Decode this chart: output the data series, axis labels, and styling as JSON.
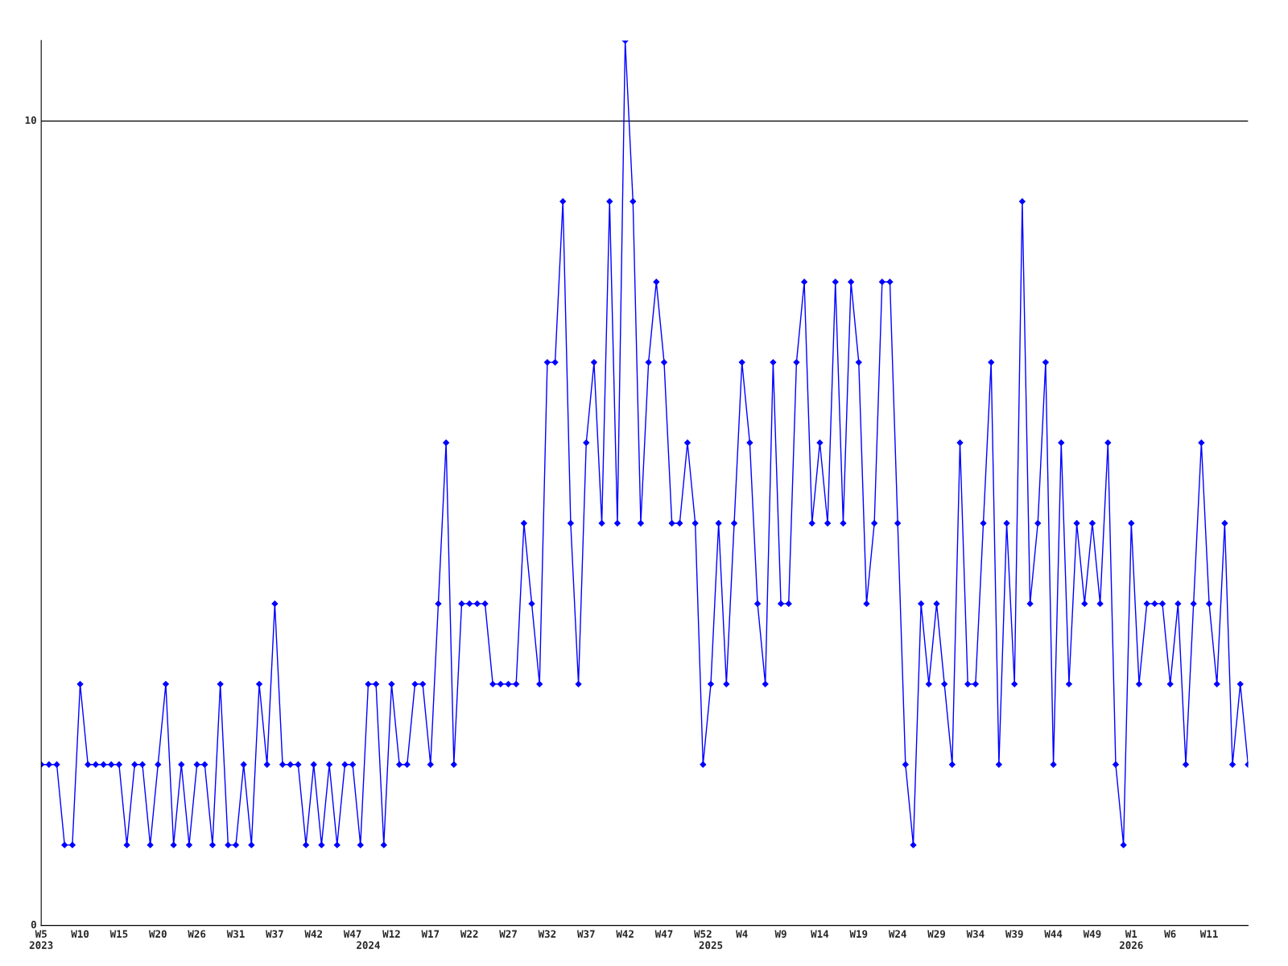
{
  "chart_data": {
    "type": "line",
    "categories": [
      "W5\n2023",
      null,
      null,
      null,
      null,
      "W10",
      null,
      null,
      null,
      null,
      "W15",
      null,
      null,
      null,
      null,
      "W20",
      null,
      null,
      null,
      null,
      "W26",
      null,
      null,
      null,
      null,
      "W31",
      null,
      null,
      null,
      null,
      "W37",
      null,
      null,
      null,
      null,
      "W42",
      null,
      null,
      null,
      null,
      "W47",
      null,
      "\n2024",
      null,
      null,
      "W12",
      null,
      null,
      null,
      null,
      "W17",
      null,
      null,
      null,
      null,
      "W22",
      null,
      null,
      null,
      null,
      "W27",
      null,
      null,
      null,
      null,
      "W32",
      null,
      null,
      null,
      null,
      "W37",
      null,
      null,
      null,
      null,
      "W42",
      null,
      null,
      null,
      null,
      "W47",
      null,
      null,
      null,
      null,
      "W52",
      "\n2025",
      null,
      null,
      null,
      "W4",
      null,
      null,
      null,
      null,
      "W9",
      null,
      null,
      null,
      null,
      "W14",
      null,
      null,
      null,
      null,
      "W19",
      null,
      null,
      null,
      null,
      "W24",
      null,
      null,
      null,
      null,
      "W29",
      null,
      null,
      null,
      null,
      "W34",
      null,
      null,
      null,
      null,
      "W39",
      null,
      null,
      null,
      null,
      "W44",
      null,
      null,
      null,
      null,
      "W49",
      null,
      null,
      null,
      null,
      "W1\n2026",
      null,
      null,
      null,
      null,
      "W6",
      null,
      null,
      null,
      null,
      "W11",
      null,
      null,
      null,
      null,
      null
    ],
    "series": [
      {
        "color": "#0000ff",
        "values": [
          2,
          2,
          2,
          1,
          1,
          3,
          2,
          2,
          2,
          2,
          2,
          1,
          2,
          2,
          1,
          2,
          3,
          1,
          2,
          1,
          2,
          2,
          1,
          3,
          1,
          1,
          2,
          1,
          3,
          2,
          4,
          2,
          2,
          2,
          1,
          2,
          1,
          2,
          1,
          2,
          2,
          1,
          3,
          3,
          1,
          3,
          2,
          2,
          3,
          3,
          2,
          4,
          6,
          2,
          4,
          4,
          4,
          4,
          3,
          3,
          3,
          3,
          5,
          4,
          3,
          7,
          7,
          9,
          5,
          3,
          6,
          7,
          5,
          9,
          5,
          11,
          9,
          5,
          7,
          8,
          7,
          5,
          5,
          6,
          5,
          2,
          3,
          5,
          3,
          5,
          7,
          6,
          4,
          3,
          7,
          4,
          4,
          7,
          8,
          5,
          6,
          5,
          8,
          5,
          8,
          7,
          4,
          5,
          8,
          8,
          5,
          2,
          1,
          4,
          3,
          4,
          3,
          2,
          6,
          3,
          3,
          5,
          7,
          2,
          5,
          3,
          9,
          4,
          5,
          7,
          2,
          6,
          3,
          5,
          4,
          5,
          4,
          6,
          2,
          1,
          5,
          3,
          4,
          4,
          4,
          3,
          4,
          2,
          4,
          6,
          4,
          3,
          5,
          2,
          3,
          2
        ]
      }
    ],
    "ylim": [
      0,
      11
    ],
    "yticks": [
      0,
      10
    ],
    "grid": "y",
    "marker": "diamond",
    "line_style": "solid"
  }
}
